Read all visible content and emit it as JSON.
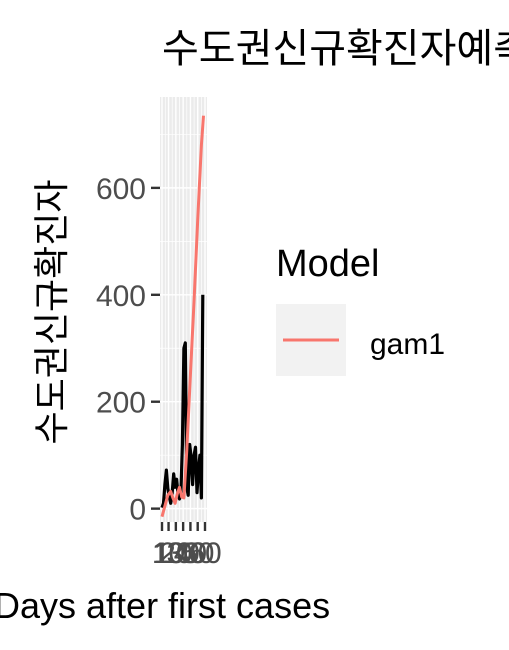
{
  "chart_data": {
    "type": "line",
    "title": "수도권신규확진자예측",
    "xlabel": "Days after first cases",
    "ylabel": "수도권신규확진자",
    "xlim": [
      1,
      60
    ],
    "ylim": [
      -25,
      770
    ],
    "x_ticks": [
      1,
      10,
      20,
      30,
      40,
      50,
      60
    ],
    "x_tick_labels": [
      "1",
      "10",
      "20",
      "30",
      "40",
      "50",
      "60"
    ],
    "y_ticks": [
      0,
      200,
      400,
      600
    ],
    "y_tick_labels": [
      "0",
      "200",
      "400",
      "600"
    ],
    "grid": true,
    "legend": {
      "title": "Model",
      "position": "right"
    },
    "series": [
      {
        "values": [
          [
            1,
            2
          ],
          [
            3,
            10
          ],
          [
            5,
            45
          ],
          [
            7,
            72
          ],
          [
            9,
            38
          ],
          [
            11,
            22
          ],
          [
            13,
            10
          ],
          [
            15,
            30
          ],
          [
            17,
            65
          ],
          [
            19,
            40
          ],
          [
            21,
            55
          ],
          [
            23,
            28
          ],
          [
            25,
            18
          ],
          [
            27,
            30
          ],
          [
            29,
            120
          ],
          [
            31,
            300
          ],
          [
            33,
            310
          ],
          [
            35,
            40
          ],
          [
            37,
            25
          ],
          [
            39,
            120
          ],
          [
            41,
            95
          ],
          [
            43,
            45
          ],
          [
            45,
            100
          ],
          [
            47,
            115
          ],
          [
            49,
            30
          ],
          [
            51,
            70
          ],
          [
            53,
            100
          ],
          [
            55,
            20
          ],
          [
            57,
            400
          ]
        ]
      },
      {
        "name": "gam1",
        "values": [
          [
            1,
            -15
          ],
          [
            5,
            5
          ],
          [
            9,
            25
          ],
          [
            13,
            32
          ],
          [
            16,
            20
          ],
          [
            19,
            10
          ],
          [
            22,
            28
          ],
          [
            25,
            40
          ],
          [
            28,
            22
          ],
          [
            31,
            20
          ],
          [
            35,
            110
          ],
          [
            40,
            250
          ],
          [
            45,
            390
          ],
          [
            50,
            540
          ],
          [
            55,
            680
          ],
          [
            58,
            735
          ]
        ]
      }
    ],
    "colors": {
      "observed": "#000000",
      "gam1": "#F8766D",
      "panel": "#EBEBEB",
      "grid": "#FFFFFF",
      "legend_key": "#F2F2F2"
    }
  }
}
